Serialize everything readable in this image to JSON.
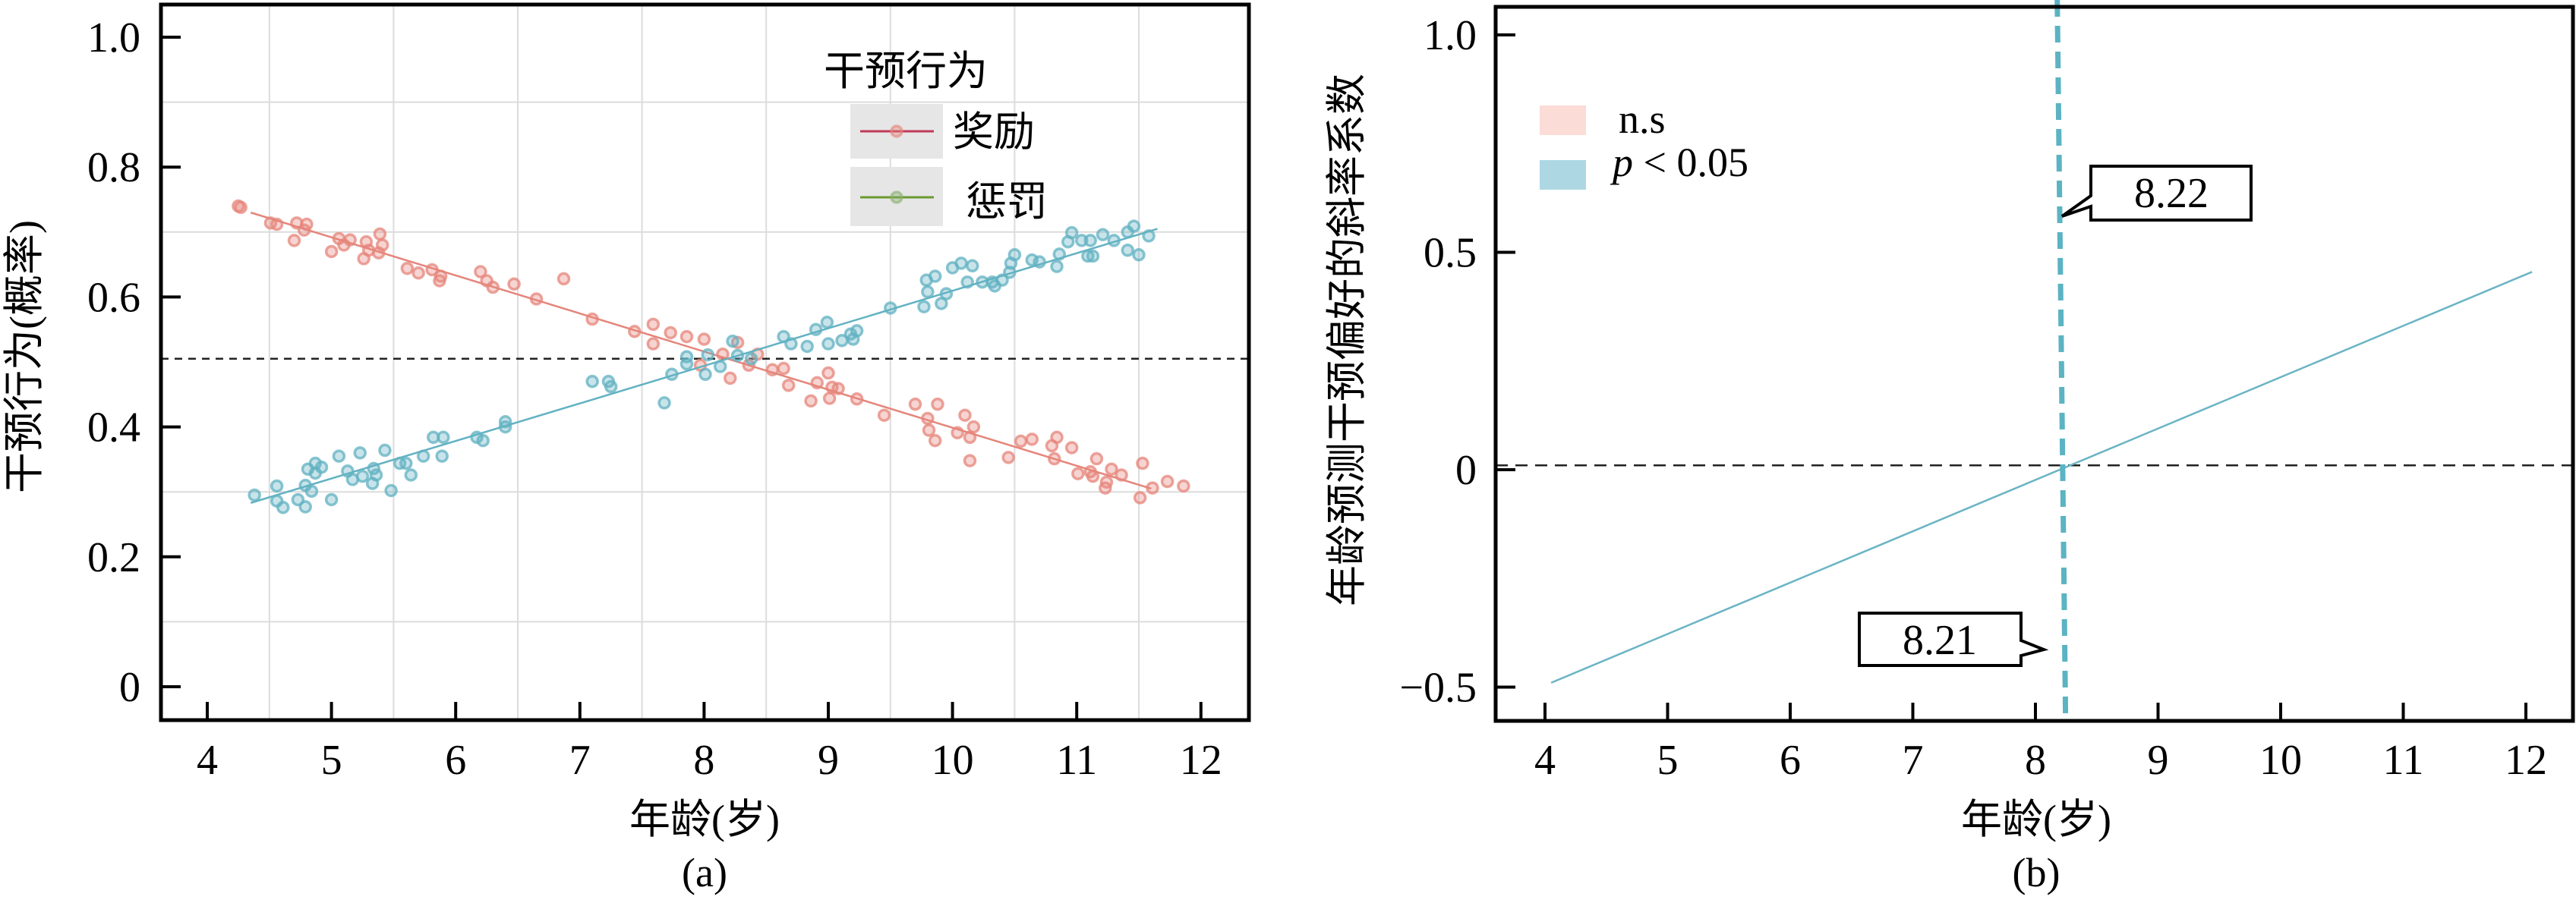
{
  "chart_data": [
    {
      "type": "scatter",
      "panel_label": "(a)",
      "xlabel": "年龄(岁)",
      "ylabel": "干预行为(概率)",
      "xlim": [
        3.65,
        12.4
      ],
      "ylim": [
        -0.05,
        1.06
      ],
      "xticks": [
        "4",
        "5",
        "6",
        "7",
        "8",
        "9",
        "10",
        "11",
        "12"
      ],
      "xtick_values": [
        4,
        5,
        6,
        7,
        8,
        9,
        10,
        11,
        12
      ],
      "yticks": [
        "0",
        "0.2",
        "0.4",
        "0.6",
        "0.8",
        "1.0"
      ],
      "ytick_values": [
        0,
        0.2,
        0.4,
        0.6,
        0.8,
        1.0
      ],
      "grid": true,
      "reference_line_y": 0.505,
      "legend": {
        "title": "干预行为",
        "placement": "top-right",
        "entries": [
          "奖励",
          "惩罚"
        ]
      },
      "legend_colors": {
        "奖励": "#c0395a",
        "惩罚": "#6a9a30"
      },
      "series": [
        {
          "name": "奖励",
          "color": "#e5857b",
          "fit": [
            [
              4.35,
              0.73
            ],
            [
              11.6,
              0.305
            ]
          ],
          "points": [
            [
              4.25,
              0.74
            ],
            [
              4.27,
              0.738
            ],
            [
              4.51,
              0.714
            ],
            [
              4.56,
              0.712
            ],
            [
              4.72,
              0.714
            ],
            [
              4.8,
              0.712
            ],
            [
              4.78,
              0.703
            ],
            [
              4.7,
              0.687
            ],
            [
              5.0,
              0.67
            ],
            [
              5.06,
              0.69
            ],
            [
              5.1,
              0.68
            ],
            [
              5.15,
              0.688
            ],
            [
              5.26,
              0.659
            ],
            [
              5.28,
              0.685
            ],
            [
              5.3,
              0.672
            ],
            [
              5.38,
              0.668
            ],
            [
              5.39,
              0.697
            ],
            [
              5.41,
              0.68
            ],
            [
              5.61,
              0.644
            ],
            [
              5.7,
              0.637
            ],
            [
              5.81,
              0.642
            ],
            [
              5.87,
              0.625
            ],
            [
              5.88,
              0.632
            ],
            [
              6.2,
              0.639
            ],
            [
              6.25,
              0.625
            ],
            [
              6.3,
              0.615
            ],
            [
              6.47,
              0.62
            ],
            [
              6.65,
              0.597
            ],
            [
              6.87,
              0.628
            ],
            [
              7.1,
              0.566
            ],
            [
              7.44,
              0.547
            ],
            [
              7.59,
              0.558
            ],
            [
              7.59,
              0.528
            ],
            [
              7.73,
              0.545
            ],
            [
              7.86,
              0.539
            ],
            [
              8.0,
              0.535
            ],
            [
              7.97,
              0.495
            ],
            [
              8.15,
              0.512
            ],
            [
              8.21,
              0.475
            ],
            [
              8.27,
              0.53
            ],
            [
              8.36,
              0.495
            ],
            [
              8.43,
              0.512
            ],
            [
              8.55,
              0.488
            ],
            [
              8.64,
              0.49
            ],
            [
              8.68,
              0.464
            ],
            [
              8.86,
              0.44
            ],
            [
              8.91,
              0.468
            ],
            [
              9.0,
              0.483
            ],
            [
              9.01,
              0.444
            ],
            [
              9.03,
              0.461
            ],
            [
              9.08,
              0.459
            ],
            [
              9.23,
              0.443
            ],
            [
              9.45,
              0.418
            ],
            [
              9.7,
              0.435
            ],
            [
              9.8,
              0.413
            ],
            [
              9.81,
              0.395
            ],
            [
              9.86,
              0.379
            ],
            [
              9.88,
              0.435
            ],
            [
              10.04,
              0.391
            ],
            [
              10.1,
              0.418
            ],
            [
              10.14,
              0.384
            ],
            [
              10.17,
              0.4
            ],
            [
              10.14,
              0.348
            ],
            [
              10.45,
              0.353
            ],
            [
              10.55,
              0.378
            ],
            [
              10.64,
              0.381
            ],
            [
              10.8,
              0.371
            ],
            [
              10.84,
              0.384
            ],
            [
              10.82,
              0.351
            ],
            [
              10.96,
              0.368
            ],
            [
              11.01,
              0.328
            ],
            [
              11.16,
              0.351
            ],
            [
              11.11,
              0.331
            ],
            [
              11.13,
              0.324
            ],
            [
              11.24,
              0.315
            ],
            [
              11.23,
              0.306
            ],
            [
              11.28,
              0.335
            ],
            [
              11.36,
              0.326
            ],
            [
              11.53,
              0.344
            ],
            [
              11.51,
              0.291
            ],
            [
              11.61,
              0.306
            ],
            [
              11.73,
              0.316
            ],
            [
              11.86,
              0.309
            ]
          ]
        },
        {
          "name": "惩罚",
          "color": "#62b2c2",
          "fit": [
            [
              4.35,
              0.283
            ],
            [
              11.65,
              0.705
            ]
          ],
          "points": [
            [
              4.38,
              0.295
            ],
            [
              4.56,
              0.309
            ],
            [
              4.56,
              0.286
            ],
            [
              4.61,
              0.276
            ],
            [
              4.73,
              0.288
            ],
            [
              4.79,
              0.277
            ],
            [
              4.79,
              0.31
            ],
            [
              4.84,
              0.301
            ],
            [
              4.81,
              0.335
            ],
            [
              4.87,
              0.344
            ],
            [
              4.87,
              0.329
            ],
            [
              4.92,
              0.338
            ],
            [
              5.0,
              0.288
            ],
            [
              5.06,
              0.355
            ],
            [
              5.13,
              0.332
            ],
            [
              5.17,
              0.319
            ],
            [
              5.23,
              0.36
            ],
            [
              5.25,
              0.324
            ],
            [
              5.33,
              0.313
            ],
            [
              5.34,
              0.336
            ],
            [
              5.36,
              0.326
            ],
            [
              5.43,
              0.364
            ],
            [
              5.48,
              0.302
            ],
            [
              5.55,
              0.344
            ],
            [
              5.6,
              0.344
            ],
            [
              5.64,
              0.326
            ],
            [
              5.74,
              0.355
            ],
            [
              5.82,
              0.384
            ],
            [
              5.9,
              0.384
            ],
            [
              5.89,
              0.355
            ],
            [
              6.17,
              0.384
            ],
            [
              6.22,
              0.379
            ],
            [
              6.4,
              0.4
            ],
            [
              6.4,
              0.408
            ],
            [
              7.1,
              0.47
            ],
            [
              7.23,
              0.47
            ],
            [
              7.25,
              0.462
            ],
            [
              7.68,
              0.437
            ],
            [
              7.74,
              0.481
            ],
            [
              7.86,
              0.508
            ],
            [
              7.86,
              0.497
            ],
            [
              8.03,
              0.511
            ],
            [
              8.01,
              0.481
            ],
            [
              8.13,
              0.493
            ],
            [
              8.23,
              0.532
            ],
            [
              8.27,
              0.51
            ],
            [
              8.38,
              0.505
            ],
            [
              8.64,
              0.539
            ],
            [
              8.7,
              0.528
            ],
            [
              8.83,
              0.524
            ],
            [
              8.9,
              0.55
            ],
            [
              8.99,
              0.561
            ],
            [
              9.0,
              0.528
            ],
            [
              9.11,
              0.533
            ],
            [
              9.18,
              0.543
            ],
            [
              9.2,
              0.535
            ],
            [
              9.23,
              0.548
            ],
            [
              9.5,
              0.583
            ],
            [
              9.77,
              0.585
            ],
            [
              9.79,
              0.626
            ],
            [
              9.8,
              0.608
            ],
            [
              9.86,
              0.632
            ],
            [
              9.91,
              0.59
            ],
            [
              9.95,
              0.605
            ],
            [
              10.0,
              0.645
            ],
            [
              10.07,
              0.652
            ],
            [
              10.16,
              0.648
            ],
            [
              10.12,
              0.623
            ],
            [
              10.24,
              0.623
            ],
            [
              10.32,
              0.623
            ],
            [
              10.34,
              0.617
            ],
            [
              10.4,
              0.626
            ],
            [
              10.46,
              0.638
            ],
            [
              10.47,
              0.652
            ],
            [
              10.5,
              0.665
            ],
            [
              10.64,
              0.657
            ],
            [
              10.7,
              0.654
            ],
            [
              10.84,
              0.647
            ],
            [
              10.86,
              0.666
            ],
            [
              10.93,
              0.685
            ],
            [
              10.96,
              0.699
            ],
            [
              11.04,
              0.687
            ],
            [
              11.09,
              0.663
            ],
            [
              11.13,
              0.663
            ],
            [
              11.11,
              0.687
            ],
            [
              11.21,
              0.696
            ],
            [
              11.3,
              0.687
            ],
            [
              11.41,
              0.7
            ],
            [
              11.46,
              0.709
            ],
            [
              11.41,
              0.672
            ],
            [
              11.5,
              0.665
            ],
            [
              11.58,
              0.694
            ]
          ]
        }
      ]
    },
    {
      "type": "line",
      "panel_label": "(b)",
      "xlabel": "年龄(岁)",
      "ylabel": "年龄预测干预偏好的斜率系数",
      "xlim": [
        3.6,
        12.4
      ],
      "ylim": [
        -0.58,
        1.07
      ],
      "xticks": [
        "4",
        "5",
        "6",
        "7",
        "8",
        "9",
        "10",
        "11",
        "12"
      ],
      "xtick_values": [
        4,
        5,
        6,
        7,
        8,
        9,
        10,
        11,
        12
      ],
      "yticks": [
        "−0.5",
        "0",
        "0.5",
        "1.0"
      ],
      "ytick_values": [
        -0.5,
        0,
        0.5,
        1.0
      ],
      "grid": false,
      "reference_line_y": 0.01,
      "threshold_x": 8.215,
      "legend": {
        "placement": "top-left",
        "entries": [
          {
            "label": "n.s",
            "color": "#fbdcd7"
          },
          {
            "label_italic": "p",
            "label": " < 0.05",
            "color": "#add8e3"
          }
        ]
      },
      "series": [
        {
          "name": "slope",
          "color": "#6ab4c4",
          "x": [
            4.05,
            12.05
          ],
          "y": [
            -0.49,
            0.455
          ]
        }
      ],
      "annotations": [
        {
          "text": "8.22",
          "x": 8.22
        },
        {
          "text": "8.21",
          "x": 8.21
        }
      ]
    }
  ]
}
